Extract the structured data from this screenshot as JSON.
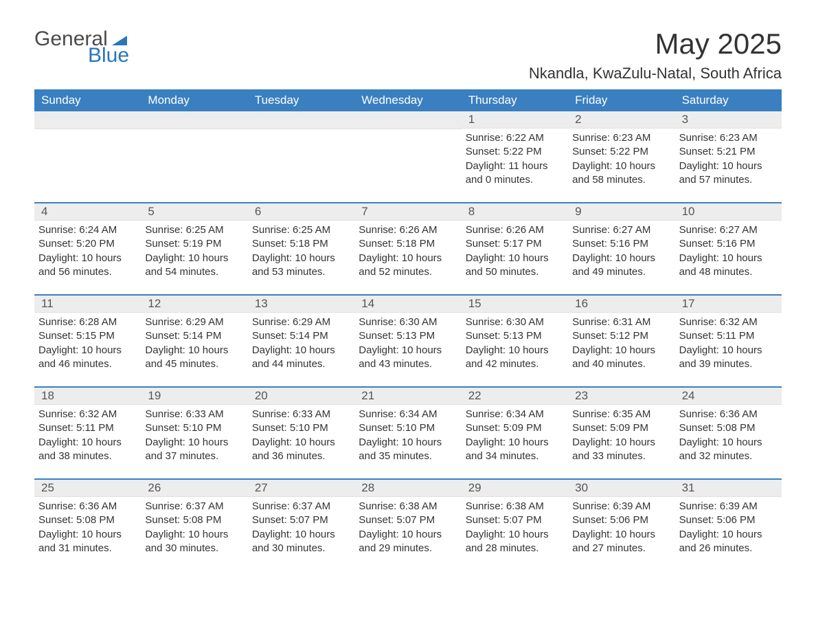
{
  "logo": {
    "word1": "General",
    "word2": "Blue"
  },
  "title": "May 2025",
  "location": "Nkandla, KwaZulu-Natal, South Africa",
  "header_bg": "#3a7fc0",
  "weekdays": [
    "Sunday",
    "Monday",
    "Tuesday",
    "Wednesday",
    "Thursday",
    "Friday",
    "Saturday"
  ],
  "weeks": [
    [
      null,
      null,
      null,
      null,
      {
        "n": "1",
        "sr": "6:22 AM",
        "ss": "5:22 PM",
        "dh": "11",
        "dm": "0"
      },
      {
        "n": "2",
        "sr": "6:23 AM",
        "ss": "5:22 PM",
        "dh": "10",
        "dm": "58"
      },
      {
        "n": "3",
        "sr": "6:23 AM",
        "ss": "5:21 PM",
        "dh": "10",
        "dm": "57"
      }
    ],
    [
      {
        "n": "4",
        "sr": "6:24 AM",
        "ss": "5:20 PM",
        "dh": "10",
        "dm": "56"
      },
      {
        "n": "5",
        "sr": "6:25 AM",
        "ss": "5:19 PM",
        "dh": "10",
        "dm": "54"
      },
      {
        "n": "6",
        "sr": "6:25 AM",
        "ss": "5:18 PM",
        "dh": "10",
        "dm": "53"
      },
      {
        "n": "7",
        "sr": "6:26 AM",
        "ss": "5:18 PM",
        "dh": "10",
        "dm": "52"
      },
      {
        "n": "8",
        "sr": "6:26 AM",
        "ss": "5:17 PM",
        "dh": "10",
        "dm": "50"
      },
      {
        "n": "9",
        "sr": "6:27 AM",
        "ss": "5:16 PM",
        "dh": "10",
        "dm": "49"
      },
      {
        "n": "10",
        "sr": "6:27 AM",
        "ss": "5:16 PM",
        "dh": "10",
        "dm": "48"
      }
    ],
    [
      {
        "n": "11",
        "sr": "6:28 AM",
        "ss": "5:15 PM",
        "dh": "10",
        "dm": "46"
      },
      {
        "n": "12",
        "sr": "6:29 AM",
        "ss": "5:14 PM",
        "dh": "10",
        "dm": "45"
      },
      {
        "n": "13",
        "sr": "6:29 AM",
        "ss": "5:14 PM",
        "dh": "10",
        "dm": "44"
      },
      {
        "n": "14",
        "sr": "6:30 AM",
        "ss": "5:13 PM",
        "dh": "10",
        "dm": "43"
      },
      {
        "n": "15",
        "sr": "6:30 AM",
        "ss": "5:13 PM",
        "dh": "10",
        "dm": "42"
      },
      {
        "n": "16",
        "sr": "6:31 AM",
        "ss": "5:12 PM",
        "dh": "10",
        "dm": "40"
      },
      {
        "n": "17",
        "sr": "6:32 AM",
        "ss": "5:11 PM",
        "dh": "10",
        "dm": "39"
      }
    ],
    [
      {
        "n": "18",
        "sr": "6:32 AM",
        "ss": "5:11 PM",
        "dh": "10",
        "dm": "38"
      },
      {
        "n": "19",
        "sr": "6:33 AM",
        "ss": "5:10 PM",
        "dh": "10",
        "dm": "37"
      },
      {
        "n": "20",
        "sr": "6:33 AM",
        "ss": "5:10 PM",
        "dh": "10",
        "dm": "36"
      },
      {
        "n": "21",
        "sr": "6:34 AM",
        "ss": "5:10 PM",
        "dh": "10",
        "dm": "35"
      },
      {
        "n": "22",
        "sr": "6:34 AM",
        "ss": "5:09 PM",
        "dh": "10",
        "dm": "34"
      },
      {
        "n": "23",
        "sr": "6:35 AM",
        "ss": "5:09 PM",
        "dh": "10",
        "dm": "33"
      },
      {
        "n": "24",
        "sr": "6:36 AM",
        "ss": "5:08 PM",
        "dh": "10",
        "dm": "32"
      }
    ],
    [
      {
        "n": "25",
        "sr": "6:36 AM",
        "ss": "5:08 PM",
        "dh": "10",
        "dm": "31"
      },
      {
        "n": "26",
        "sr": "6:37 AM",
        "ss": "5:08 PM",
        "dh": "10",
        "dm": "30"
      },
      {
        "n": "27",
        "sr": "6:37 AM",
        "ss": "5:07 PM",
        "dh": "10",
        "dm": "30"
      },
      {
        "n": "28",
        "sr": "6:38 AM",
        "ss": "5:07 PM",
        "dh": "10",
        "dm": "29"
      },
      {
        "n": "29",
        "sr": "6:38 AM",
        "ss": "5:07 PM",
        "dh": "10",
        "dm": "28"
      },
      {
        "n": "30",
        "sr": "6:39 AM",
        "ss": "5:06 PM",
        "dh": "10",
        "dm": "27"
      },
      {
        "n": "31",
        "sr": "6:39 AM",
        "ss": "5:06 PM",
        "dh": "10",
        "dm": "26"
      }
    ]
  ],
  "labels": {
    "sunrise": "Sunrise: ",
    "sunset": "Sunset: ",
    "daylight_pre": "Daylight: ",
    "hours": " hours",
    "and": "and ",
    "minutes": " minutes."
  }
}
